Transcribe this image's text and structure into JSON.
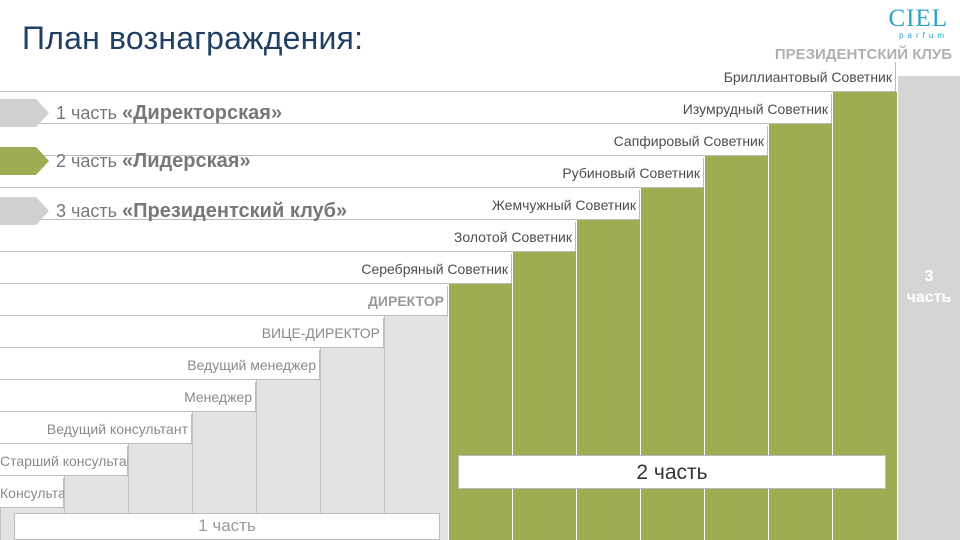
{
  "title": "План вознаграждения:",
  "logo": {
    "main": "CIEL",
    "sub": "parfum"
  },
  "club_title": "ПРЕЗИДЕНТСКИЙ КЛУБ",
  "parts": [
    {
      "prefix": "1 часть ",
      "name": "«Директорская»",
      "color": "#d0d0d0"
    },
    {
      "prefix": "2 часть ",
      "name": "«Лидерская»",
      "color": "#9eac53"
    },
    {
      "prefix": "3 часть ",
      "name": "«Президентский клуб»",
      "color": "#d0d0d0"
    }
  ],
  "steps": [
    {
      "label": "Консультант",
      "style": "lg"
    },
    {
      "label": "Старший консультант",
      "style": "lg"
    },
    {
      "label": "Ведущий консультант",
      "style": "lg"
    },
    {
      "label": "Менеджер",
      "style": "lg"
    },
    {
      "label": "Ведущий менеджер",
      "style": "lg"
    },
    {
      "label": "ВИЦЕ-ДИРЕКТОР",
      "style": "lg"
    },
    {
      "label": "ДИРЕКТОР",
      "style": "dir"
    },
    {
      "label": "Серебряный Советник",
      "style": ""
    },
    {
      "label": "Золотой Советник",
      "style": ""
    },
    {
      "label": "Жемчужный Советник",
      "style": ""
    },
    {
      "label": "Рубиновый Советник",
      "style": ""
    },
    {
      "label": "Сапфировый Советник",
      "style": ""
    },
    {
      "label": "Изумрудный Советник",
      "style": ""
    },
    {
      "label": "Бриллиантовый Советник",
      "style": ""
    }
  ],
  "part1_box": "1 часть",
  "part2_box": "2 часть",
  "part3_word": "3",
  "part3_word2": "часть",
  "colors": {
    "title_bar": [
      "#9eac53",
      "#2e7fb8",
      "#b2352a",
      "#e8932b"
    ],
    "green": "#9eac53",
    "grey": "#e3e3e3"
  }
}
